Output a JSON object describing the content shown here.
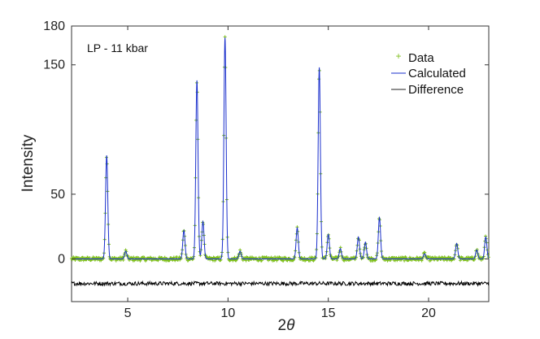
{
  "chart_data": {
    "type": "line",
    "annotation": "LP - 11 kbar",
    "xlabel_prefix": "2",
    "xlabel_symbol": "θ",
    "ylabel": "Intensity",
    "xlim": [
      2.2,
      23.0
    ],
    "ylim": [
      -33,
      180
    ],
    "xticks": [
      5,
      10,
      15,
      20
    ],
    "yticks": [
      0,
      50,
      150,
      180
    ],
    "grid": false,
    "legend_position": "top-right",
    "colors": {
      "data": "#7fbf1f",
      "calculated": "#1a2fcc",
      "difference": "#000000"
    },
    "series": [
      {
        "name": "Data",
        "style": "markers"
      },
      {
        "name": "Calculated",
        "style": "line"
      },
      {
        "name": "Difference",
        "style": "line"
      }
    ],
    "background_level": 0,
    "difference_offset": -19,
    "peaks": [
      {
        "x": 3.95,
        "y": 80
      },
      {
        "x": 4.9,
        "y": 6
      },
      {
        "x": 7.8,
        "y": 22
      },
      {
        "x": 8.45,
        "y": 138
      },
      {
        "x": 8.75,
        "y": 29
      },
      {
        "x": 9.85,
        "y": 171
      },
      {
        "x": 10.6,
        "y": 6
      },
      {
        "x": 13.45,
        "y": 24
      },
      {
        "x": 14.55,
        "y": 148
      },
      {
        "x": 15.0,
        "y": 19
      },
      {
        "x": 15.6,
        "y": 8
      },
      {
        "x": 16.5,
        "y": 17
      },
      {
        "x": 16.85,
        "y": 13
      },
      {
        "x": 17.55,
        "y": 32
      },
      {
        "x": 19.8,
        "y": 4
      },
      {
        "x": 21.4,
        "y": 12
      },
      {
        "x": 22.4,
        "y": 7
      },
      {
        "x": 22.85,
        "y": 17
      }
    ]
  }
}
